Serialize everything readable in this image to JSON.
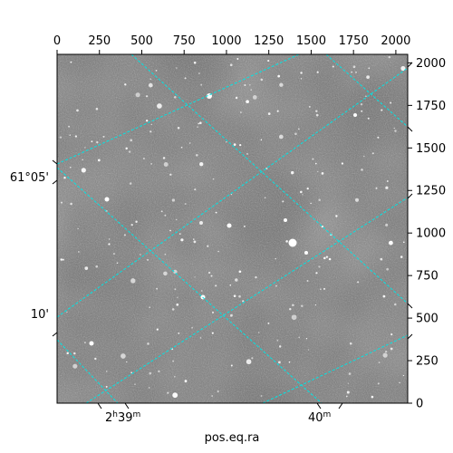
{
  "figure": {
    "xlabel": "pos.eq.ra",
    "top_axis_ticks": [
      "0",
      "250",
      "500",
      "750",
      "1000",
      "1250",
      "1500",
      "1750",
      "2000"
    ],
    "right_axis_ticks": [
      "0",
      "250",
      "500",
      "750",
      "1000",
      "1250",
      "1500",
      "1750",
      "2000"
    ],
    "ra_ticks": [
      {
        "hours": "2",
        "hours_unit": "h",
        "minutes": "39",
        "minutes_unit": "m"
      },
      {
        "minutes": "40",
        "minutes_unit": "m"
      }
    ],
    "dec_ticks": [
      "61°05'",
      "10'"
    ],
    "grid_color": "#00e5e5",
    "image_colormap": "grayscale"
  }
}
